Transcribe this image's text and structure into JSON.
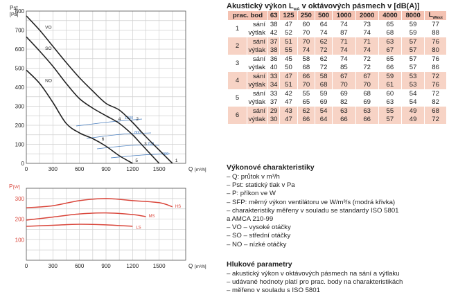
{
  "top_chart": {
    "ylabel_top": "Pst",
    "ylabel_unit": "[Pa]",
    "xlabel": "Q",
    "xunit": "[m³/h]",
    "yticks": [
      "0",
      "100",
      "200",
      "300",
      "400",
      "500",
      "600",
      "700",
      "800"
    ],
    "xticks": [
      "0",
      "300",
      "600",
      "900",
      "1200",
      "1500"
    ],
    "curve_labels": [
      "VO",
      "SO",
      "NO"
    ],
    "point_labels": [
      "1",
      "2",
      "3",
      "4",
      "5",
      "6"
    ],
    "sfp_labels": [
      "1000",
      "800",
      "700",
      "600"
    ],
    "line_color": "#222222",
    "sfp_color": "#4a7fbf"
  },
  "bottom_chart": {
    "ylabel_top": "P",
    "ylabel_unit": "[W]",
    "xlabel": "Q",
    "xunit": "[m³/h]",
    "yticks": [
      "100",
      "200",
      "300"
    ],
    "xticks": [
      "0",
      "300",
      "600",
      "900",
      "1200",
      "1500"
    ],
    "series_labels": [
      "HS",
      "MS",
      "LS"
    ],
    "line_color": "#d9453a"
  },
  "chart_data": [
    {
      "type": "line",
      "xlabel": "Q [m³/h]",
      "ylabel": "Pst [Pa]",
      "xlim": [
        0,
        1800
      ],
      "ylim": [
        0,
        800
      ],
      "grid": true,
      "series": [
        {
          "name": "VO",
          "x": [
            0,
            150,
            300,
            450,
            600,
            750,
            900,
            1050,
            1200,
            1350,
            1500,
            1650
          ],
          "values": [
            775,
            700,
            615,
            530,
            450,
            380,
            315,
            280,
            215,
            140,
            70,
            0
          ]
        },
        {
          "name": "SO",
          "x": [
            0,
            150,
            300,
            450,
            600,
            750,
            900,
            1050,
            1200,
            1300,
            1500
          ],
          "values": [
            665,
            590,
            510,
            420,
            340,
            290,
            250,
            210,
            150,
            100,
            0
          ]
        },
        {
          "name": "NO",
          "x": [
            0,
            150,
            300,
            450,
            600,
            750,
            900,
            1050,
            1200
          ],
          "values": [
            490,
            420,
            320,
            210,
            160,
            130,
            90,
            40,
            0
          ]
        }
      ]
    },
    {
      "type": "line",
      "xlabel": "Q [m³/h]",
      "ylabel": "P [W]",
      "xlim": [
        0,
        1800
      ],
      "ylim": [
        0,
        350
      ],
      "grid": true,
      "series": [
        {
          "name": "HS",
          "x": [
            0,
            300,
            600,
            900,
            1200,
            1500,
            1650
          ],
          "values": [
            255,
            265,
            290,
            300,
            290,
            280,
            260
          ]
        },
        {
          "name": "MS",
          "x": [
            0,
            300,
            600,
            900,
            1200,
            1350
          ],
          "values": [
            195,
            210,
            225,
            230,
            222,
            212
          ]
        },
        {
          "name": "LS",
          "x": [
            0,
            300,
            600,
            900,
            1200
          ],
          "values": [
            165,
            170,
            175,
            172,
            165
          ]
        }
      ]
    }
  ],
  "table": {
    "title": "Akustický výkon L",
    "title_sub": "wA",
    "title_rest": " v oktávových pásmech v [dB(A)]",
    "header_point": "prac. bod",
    "header_freqs": [
      "63",
      "125",
      "250",
      "500",
      "1000",
      "2000",
      "4000",
      "8000"
    ],
    "header_total": "L",
    "header_total_sub": "WAtot",
    "rows": [
      {
        "point": "1",
        "label": "sání",
        "values": [
          "38",
          "47",
          "60",
          "64",
          "74",
          "73",
          "65",
          "59"
        ],
        "total": "77"
      },
      {
        "point": "",
        "label": "výtlak",
        "values": [
          "42",
          "52",
          "70",
          "74",
          "87",
          "74",
          "68",
          "59"
        ],
        "total": "88"
      },
      {
        "point": "2",
        "label": "sání",
        "values": [
          "37",
          "51",
          "70",
          "62",
          "71",
          "71",
          "63",
          "57"
        ],
        "total": "76"
      },
      {
        "point": "",
        "label": "výtlak",
        "values": [
          "38",
          "55",
          "74",
          "72",
          "74",
          "74",
          "67",
          "57"
        ],
        "total": "80"
      },
      {
        "point": "3",
        "label": "sání",
        "values": [
          "36",
          "45",
          "58",
          "62",
          "74",
          "72",
          "65",
          "57"
        ],
        "total": "76"
      },
      {
        "point": "",
        "label": "výtlak",
        "values": [
          "40",
          "50",
          "68",
          "72",
          "85",
          "72",
          "66",
          "57"
        ],
        "total": "86"
      },
      {
        "point": "4",
        "label": "sání",
        "values": [
          "33",
          "47",
          "66",
          "58",
          "67",
          "67",
          "59",
          "53"
        ],
        "total": "72"
      },
      {
        "point": "",
        "label": "výtlak",
        "values": [
          "34",
          "51",
          "70",
          "68",
          "70",
          "70",
          "61",
          "53"
        ],
        "total": "76"
      },
      {
        "point": "5",
        "label": "sání",
        "values": [
          "33",
          "42",
          "55",
          "59",
          "69",
          "68",
          "60",
          "54"
        ],
        "total": "72"
      },
      {
        "point": "",
        "label": "výtlak",
        "values": [
          "37",
          "47",
          "65",
          "69",
          "82",
          "69",
          "63",
          "54"
        ],
        "total": "82"
      },
      {
        "point": "6",
        "label": "sání",
        "values": [
          "29",
          "43",
          "62",
          "54",
          "63",
          "63",
          "55",
          "49"
        ],
        "total": "68"
      },
      {
        "point": "",
        "label": "výtlak",
        "values": [
          "30",
          "47",
          "66",
          "64",
          "66",
          "66",
          "57",
          "49"
        ],
        "total": "72"
      }
    ]
  },
  "performance": {
    "title": "Výkonové charakteristiky",
    "items": [
      "– Q: průtok v m³/h",
      "– Pst: statický tlak v Pa",
      "– P: příkon ve W",
      "– SFP: měrný výkon ventilátoru ve W/m³/s (modrá křivka)",
      "– charakteristiky měřeny v souladu se standardy ISO 5801",
      "   a AMCA 210-99",
      "– VO – vysoké otáčky",
      "– SO – střední otáčky",
      "– NO – nízké otáčky"
    ]
  },
  "noise": {
    "title": "Hlukové parametry",
    "items": [
      "– akustický výkon v oktávových pásmech na sání a výtlaku",
      "– udávané hodnoty platí pro prac. body na charakteristikách",
      "– měřeno v souladu s ISO 5801"
    ]
  }
}
